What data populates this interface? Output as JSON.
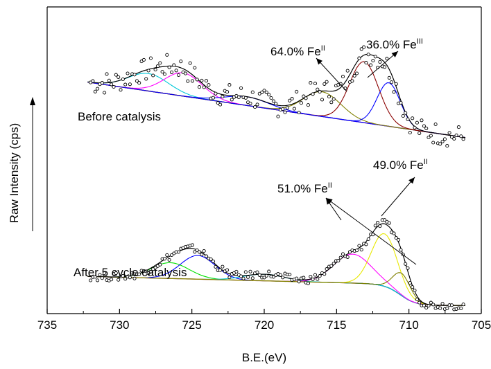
{
  "chart_data": {
    "type": "line",
    "title": "",
    "xlabel": "B.E.(eV)",
    "ylabel": "Raw Intensity (cps)",
    "xlim": [
      735,
      705
    ],
    "x_reversed": true,
    "x_ticks": [
      "735",
      "730",
      "725",
      "720",
      "715",
      "710",
      "705"
    ],
    "y_ticks_shown": false,
    "grid": false,
    "panels": [
      {
        "label": "Before catalysis",
        "x": [
          732,
          730,
          728,
          726,
          724,
          722,
          720,
          718,
          716,
          714,
          713,
          712,
          711,
          710,
          709,
          708,
          707,
          706
        ],
        "raw": [
          0.6,
          0.62,
          0.66,
          0.68,
          0.6,
          0.56,
          0.54,
          0.54,
          0.57,
          0.62,
          0.66,
          0.7,
          0.67,
          0.57,
          0.46,
          0.39,
          0.37,
          0.37
        ],
        "annotations": [
          {
            "text": "64.0% Fe",
            "sup": "II"
          },
          {
            "text": "36.0% Fe",
            "sup": "III"
          }
        ]
      },
      {
        "label": "After 5 cycle catalysis",
        "x": [
          732,
          730,
          728,
          726,
          724,
          722,
          720,
          718,
          716,
          714,
          713,
          712,
          711,
          710,
          709,
          708,
          707,
          706
        ],
        "raw": [
          0.2,
          0.21,
          0.25,
          0.33,
          0.29,
          0.18,
          0.15,
          0.14,
          0.14,
          0.24,
          0.33,
          0.44,
          0.48,
          0.38,
          0.15,
          0.04,
          0.01,
          0.01
        ],
        "annotations": [
          {
            "text": "51.0% Fe",
            "sup": "II"
          },
          {
            "text": "49.0% Fe",
            "sup": "II"
          }
        ]
      }
    ],
    "component_colors": {
      "envelope": "#000000",
      "baseline": "#a05a2c",
      "c1": "#00c8d8",
      "c2": "#ff00ff",
      "c3": "#0000ff",
      "c4": "#808000",
      "c5": "#8b0000",
      "c6": "#00e000",
      "c7": "#e8e800"
    }
  }
}
